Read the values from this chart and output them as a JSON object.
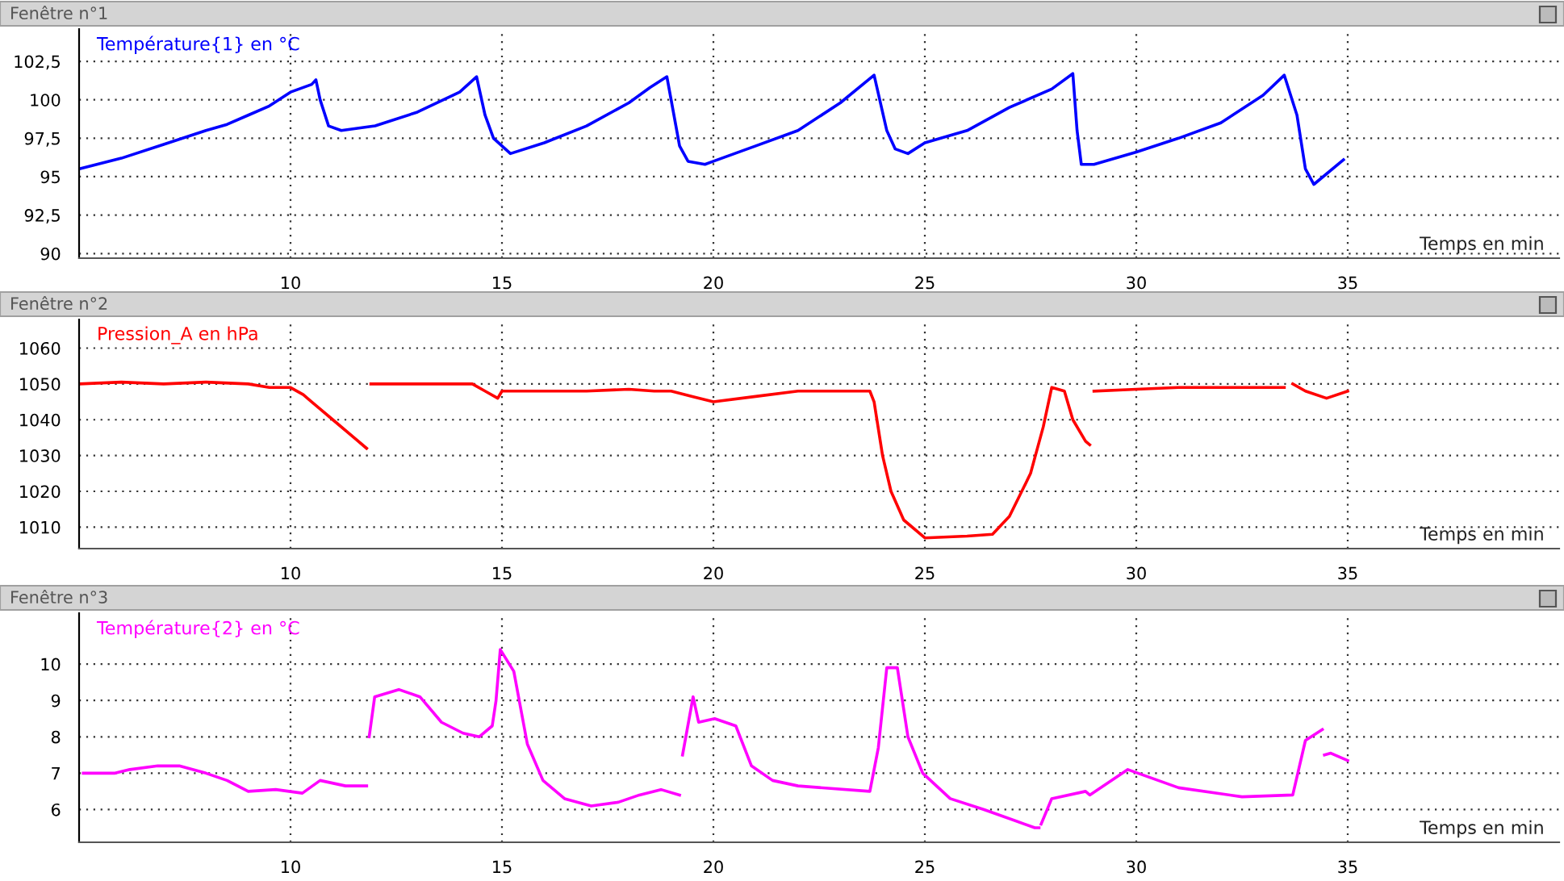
{
  "chart_data": [
    {
      "type": "line",
      "title": "Fenêtre n°1",
      "xlabel": "Temps en min",
      "xlim": [
        5,
        40
      ],
      "ylim": [
        89.7,
        104.6
      ],
      "xticks": [
        10,
        15,
        20,
        25,
        30,
        35
      ],
      "yticks": [
        90,
        {
          "value": 92.5,
          "label": "92,5"
        },
        95,
        {
          "value": 97.5,
          "label": "97,5"
        },
        100,
        {
          "value": 102.5,
          "label": "102,5"
        }
      ],
      "grid": true,
      "x": [
        5.0,
        6.0,
        7.0,
        8.0,
        8.5,
        9.0,
        9.5,
        10.0,
        10.5,
        10.6,
        10.7,
        10.9,
        11.2,
        12.0,
        13.0,
        14.0,
        14.4,
        14.6,
        14.8,
        15.2,
        16.0,
        17.0,
        18.0,
        18.5,
        18.9,
        19.0,
        19.2,
        19.4,
        19.8,
        20.0,
        21.0,
        22.0,
        23.0,
        23.8,
        24.1,
        24.3,
        24.6,
        25.0,
        26.0,
        27.0,
        28.0,
        28.5,
        28.6,
        28.7,
        29.0,
        30.0,
        31.0,
        32.0,
        33.0,
        33.5,
        33.8,
        34.0,
        34.2,
        34.9
      ],
      "series": [
        {
          "name": "Température{1} en °C",
          "color": "#0000ff",
          "values": [
            95.5,
            96.2,
            97.1,
            98.0,
            98.4,
            99.0,
            99.6,
            100.5,
            101.0,
            101.3,
            100.0,
            98.3,
            98.0,
            98.3,
            99.2,
            100.5,
            101.5,
            99.0,
            97.5,
            96.5,
            97.2,
            98.3,
            99.8,
            100.8,
            101.5,
            100.0,
            97.0,
            96.0,
            95.8,
            96.0,
            97.0,
            98.0,
            99.8,
            101.6,
            98.0,
            96.8,
            96.5,
            97.2,
            98.0,
            99.5,
            100.7,
            101.7,
            98.0,
            95.8,
            95.8,
            96.6,
            97.5,
            98.5,
            100.3,
            101.6,
            99.0,
            95.5,
            94.5,
            96.1
          ]
        }
      ]
    },
    {
      "type": "line",
      "title": "Fenêtre n°2",
      "xlabel": "Temps en min",
      "xlim": [
        5,
        40
      ],
      "ylim": [
        1004,
        1068
      ],
      "xticks": [
        10,
        15,
        20,
        25,
        30,
        35
      ],
      "yticks": [
        1010,
        1020,
        1030,
        1040,
        1050,
        1060
      ],
      "grid": true,
      "x": [
        5.0,
        6.0,
        7.0,
        8.0,
        9.0,
        9.5,
        10.0,
        10.3,
        10.5,
        11.0,
        11.5,
        11.8,
        11.85,
        11.9,
        13.0,
        14.0,
        14.3,
        14.6,
        14.9,
        15.0,
        16.0,
        17.0,
        18.0,
        18.6,
        19.0,
        19.5,
        20.0,
        21.0,
        22.0,
        23.0,
        23.7,
        23.8,
        24.0,
        24.2,
        24.5,
        25.0,
        26.0,
        26.6,
        27.0,
        27.5,
        27.8,
        28.0,
        28.3,
        28.5,
        28.8,
        28.9,
        28.95,
        29.0,
        30.0,
        31.0,
        32.0,
        33.3,
        33.5,
        33.6,
        33.7,
        34.0,
        34.5,
        35.0
      ],
      "series": [
        {
          "name": "Pression_A en hPa",
          "color": "#ff0000",
          "values": [
            1050,
            1050.5,
            1050,
            1050.5,
            1050,
            1049,
            1049,
            1047,
            1045,
            1040,
            1035,
            1032,
            null,
            1050,
            1050,
            1050,
            1050,
            1048,
            1046,
            1048,
            1048,
            1048,
            1048.5,
            1048,
            1048,
            1046.5,
            1045,
            1046.5,
            1048,
            1048,
            1048,
            1045,
            1030,
            1020,
            1012,
            1007,
            1007.5,
            1008,
            1013,
            1025,
            1038,
            1049,
            1048,
            1040,
            1034,
            1033,
            null,
            1048,
            1048.5,
            1049,
            1049,
            1049,
            1049,
            null,
            1050,
            1048,
            1046,
            1048
          ]
        }
      ]
    },
    {
      "type": "line",
      "title": "Fenêtre n°3",
      "xlabel": "Temps en min",
      "xlim": [
        5,
        40
      ],
      "ylim": [
        5.1,
        11.4
      ],
      "xticks": [
        10,
        15,
        20,
        25,
        30,
        35
      ],
      "yticks": [
        6,
        7,
        8,
        9,
        10
      ],
      "grid": true,
      "x": [
        5.1,
        5.85,
        6.2,
        6.86,
        7.37,
        8.0,
        8.5,
        9.0,
        9.65,
        10.28,
        10.7,
        11.3,
        11.8,
        11.83,
        11.86,
        11.99,
        12.56,
        13.06,
        13.57,
        14.08,
        14.46,
        14.77,
        14.86,
        14.96,
        15.28,
        15.6,
        15.97,
        16.48,
        17.11,
        17.75,
        18.25,
        18.76,
        19.2,
        19.23,
        19.27,
        19.52,
        19.65,
        20.03,
        20.53,
        20.9,
        21.4,
        22.0,
        23.7,
        23.9,
        24.1,
        24.35,
        24.6,
        24.95,
        25.6,
        26.4,
        27.6,
        27.7,
        27.72,
        27.75,
        28.0,
        28.8,
        28.9,
        29.8,
        31.0,
        32.5,
        33.7,
        34.0,
        34.4,
        34.42,
        34.45,
        34.6,
        35.0
      ],
      "series": [
        {
          "name": "Température{2} en °C",
          "color": "#ff00ff",
          "values": [
            7.0,
            7.0,
            7.1,
            7.2,
            7.2,
            7.0,
            6.8,
            6.5,
            6.55,
            6.45,
            6.8,
            6.65,
            6.65,
            null,
            8.0,
            9.1,
            9.3,
            9.1,
            8.4,
            8.1,
            8.0,
            8.3,
            9.0,
            10.4,
            9.8,
            7.8,
            6.8,
            6.3,
            6.1,
            6.2,
            6.4,
            6.55,
            6.4,
            null,
            7.5,
            9.1,
            8.4,
            8.5,
            8.3,
            7.2,
            6.8,
            6.65,
            6.5,
            7.7,
            9.9,
            9.9,
            8.0,
            7.0,
            6.3,
            6.0,
            5.5,
            5.5,
            null,
            5.6,
            6.3,
            6.5,
            6.4,
            7.1,
            6.6,
            6.35,
            6.4,
            7.9,
            8.2,
            null,
            7.5,
            7.55,
            7.35
          ]
        }
      ]
    }
  ]
}
